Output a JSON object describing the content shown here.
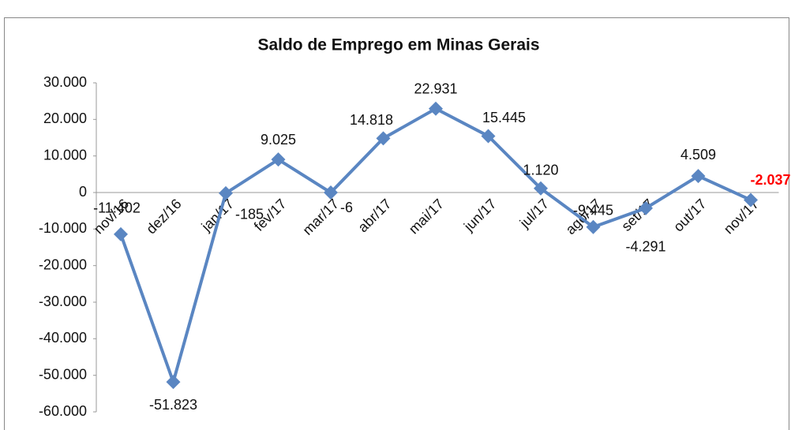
{
  "chart_data": {
    "type": "line",
    "title": "Saldo de Emprego em Minas Gerais",
    "categories": [
      "nov/16",
      "dez/16",
      "jan/17",
      "fev/17",
      "mar/17",
      "abr/17",
      "mai/17",
      "jun/17",
      "jul/17",
      "ago/17",
      "set/17",
      "out/17",
      "nov/17"
    ],
    "series": [
      {
        "name": "Saldo",
        "color": "#5a86c2",
        "values": [
          -11402,
          -51823,
          -185,
          9025,
          -6,
          14818,
          22931,
          15445,
          1120,
          -9445,
          -4291,
          4509,
          -2037
        ],
        "value_labels": [
          "-11.402",
          "-51.823",
          "-185",
          "9.025",
          "-6",
          "14.818",
          "22.931",
          "15.445",
          "1.120",
          "-9.445",
          "-4.291",
          "4.509",
          "-2.037"
        ]
      }
    ],
    "last_label_color": "#ff0000",
    "ylim": [
      -60000,
      30000
    ],
    "yticks": [
      {
        "value": -60000,
        "label": "-60.000"
      },
      {
        "value": -50000,
        "label": "-50.000"
      },
      {
        "value": -40000,
        "label": "-40.000"
      },
      {
        "value": -30000,
        "label": "-30.000"
      },
      {
        "value": -20000,
        "label": "-20.000"
      },
      {
        "value": -10000,
        "label": "-10.000"
      },
      0,
      {
        "value": 10000,
        "label": "10.000"
      },
      {
        "value": 20000,
        "label": "20.000"
      },
      {
        "value": 30000,
        "label": "30.000"
      }
    ]
  }
}
